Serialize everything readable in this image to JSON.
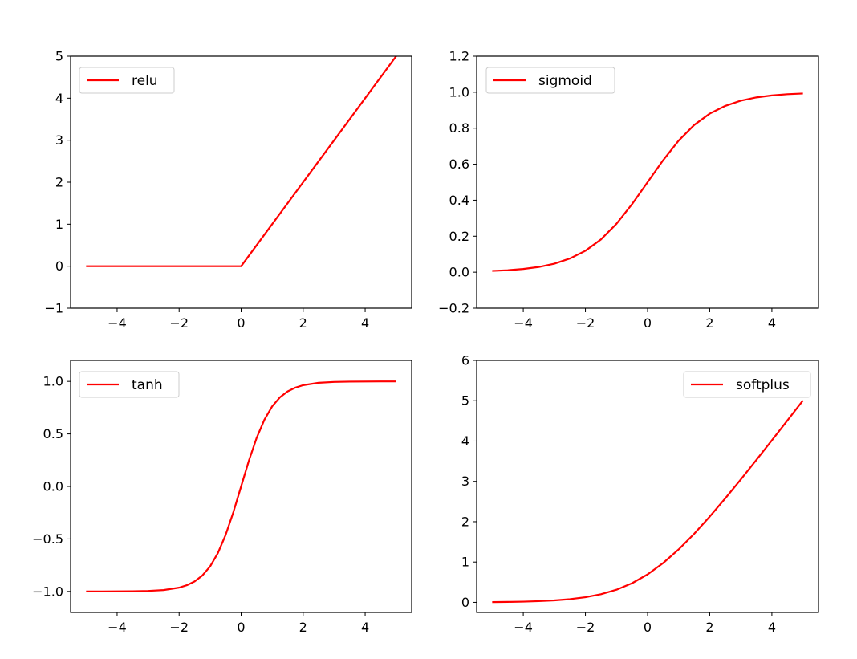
{
  "chart_data": [
    {
      "type": "line",
      "function": "relu",
      "xlim": [
        -5.5,
        5.5
      ],
      "ylim": [
        -1,
        5
      ],
      "xticks": [
        -4,
        -2,
        0,
        2,
        4
      ],
      "xtick_labels": [
        "−4",
        "−2",
        "0",
        "2",
        "4"
      ],
      "yticks": [
        -1,
        0,
        1,
        2,
        3,
        4,
        5
      ],
      "ytick_labels": [
        "−1",
        "0",
        "1",
        "2",
        "3",
        "4",
        "5"
      ],
      "legend_position": "upper left",
      "grid": false,
      "series": [
        {
          "name": "relu",
          "color": "#ff0000",
          "x": [
            -5,
            -4,
            -3,
            -2,
            -1,
            0,
            1,
            2,
            3,
            4,
            5
          ],
          "y": [
            0,
            0,
            0,
            0,
            0,
            0,
            1,
            2,
            3,
            4,
            5
          ]
        }
      ]
    },
    {
      "type": "line",
      "function": "sigmoid",
      "xlim": [
        -5.5,
        5.5
      ],
      "ylim": [
        -0.2,
        1.2
      ],
      "xticks": [
        -4,
        -2,
        0,
        2,
        4
      ],
      "xtick_labels": [
        "−4",
        "−2",
        "0",
        "2",
        "4"
      ],
      "yticks": [
        -0.2,
        0.0,
        0.2,
        0.4,
        0.6,
        0.8,
        1.0,
        1.2
      ],
      "ytick_labels": [
        "−0.2",
        "0.0",
        "0.2",
        "0.4",
        "0.6",
        "0.8",
        "1.0",
        "1.2"
      ],
      "legend_position": "upper left",
      "grid": false,
      "series": [
        {
          "name": "sigmoid",
          "color": "#ff0000",
          "x": [
            -5,
            -4.5,
            -4,
            -3.5,
            -3,
            -2.5,
            -2,
            -1.5,
            -1,
            -0.5,
            0,
            0.5,
            1,
            1.5,
            2,
            2.5,
            3,
            3.5,
            4,
            4.5,
            5
          ],
          "y": [
            0.007,
            0.011,
            0.018,
            0.029,
            0.047,
            0.076,
            0.119,
            0.182,
            0.269,
            0.378,
            0.5,
            0.622,
            0.731,
            0.818,
            0.881,
            0.924,
            0.953,
            0.971,
            0.982,
            0.989,
            0.993
          ]
        }
      ]
    },
    {
      "type": "line",
      "function": "tanh",
      "xlim": [
        -5.5,
        5.5
      ],
      "ylim": [
        -1.2,
        1.2
      ],
      "xticks": [
        -4,
        -2,
        0,
        2,
        4
      ],
      "xtick_labels": [
        "−4",
        "−2",
        "0",
        "2",
        "4"
      ],
      "yticks": [
        -1.0,
        -0.5,
        0.0,
        0.5,
        1.0
      ],
      "ytick_labels": [
        "−1.0",
        "−0.5",
        "0.0",
        "0.5",
        "1.0"
      ],
      "legend_position": "upper left",
      "grid": false,
      "series": [
        {
          "name": "tanh",
          "color": "#ff0000",
          "x": [
            -5,
            -4.5,
            -4,
            -3.5,
            -3,
            -2.5,
            -2,
            -1.75,
            -1.5,
            -1.25,
            -1,
            -0.75,
            -0.5,
            -0.25,
            0,
            0.25,
            0.5,
            0.75,
            1,
            1.25,
            1.5,
            1.75,
            2,
            2.5,
            3,
            3.5,
            4,
            4.5,
            5
          ],
          "y": [
            -1.0,
            -1.0,
            -0.999,
            -0.998,
            -0.995,
            -0.987,
            -0.964,
            -0.941,
            -0.905,
            -0.848,
            -0.762,
            -0.635,
            -0.462,
            -0.245,
            0.0,
            0.245,
            0.462,
            0.635,
            0.762,
            0.848,
            0.905,
            0.941,
            0.964,
            0.987,
            0.995,
            0.998,
            0.999,
            1.0,
            1.0
          ]
        }
      ]
    },
    {
      "type": "line",
      "function": "softplus",
      "xlim": [
        -5.5,
        5.5
      ],
      "ylim": [
        -0.25,
        6
      ],
      "xticks": [
        -4,
        -2,
        0,
        2,
        4
      ],
      "xtick_labels": [
        "−4",
        "−2",
        "0",
        "2",
        "4"
      ],
      "yticks": [
        0,
        1,
        2,
        3,
        4,
        5,
        6
      ],
      "ytick_labels": [
        "0",
        "1",
        "2",
        "3",
        "4",
        "5",
        "6"
      ],
      "legend_position": "upper right",
      "grid": false,
      "series": [
        {
          "name": "softplus",
          "color": "#ff0000",
          "x": [
            -5,
            -4.5,
            -4,
            -3.5,
            -3,
            -2.5,
            -2,
            -1.5,
            -1,
            -0.5,
            0,
            0.5,
            1,
            1.5,
            2,
            2.5,
            3,
            3.5,
            4,
            4.5,
            5
          ],
          "y": [
            0.007,
            0.011,
            0.018,
            0.03,
            0.049,
            0.079,
            0.127,
            0.201,
            0.313,
            0.474,
            0.693,
            0.974,
            1.313,
            1.701,
            2.127,
            2.579,
            3.049,
            3.53,
            4.018,
            4.511,
            5.007
          ]
        }
      ]
    }
  ]
}
